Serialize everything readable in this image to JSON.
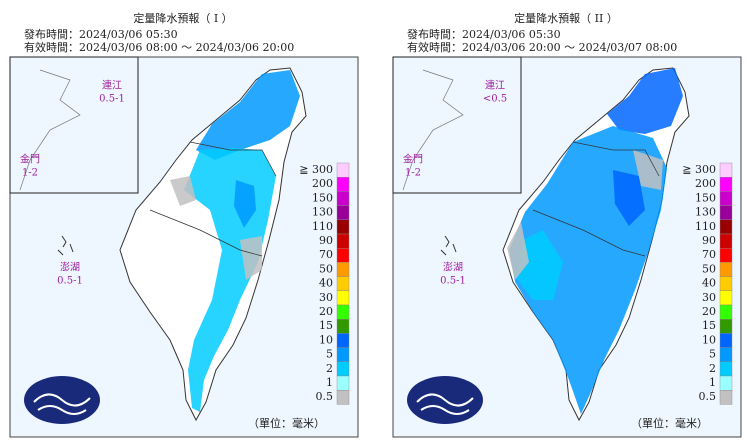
{
  "panels": [
    {
      "title": "定量降水預報（ I ）",
      "issued": "發布時間：2024/03/06 05:30",
      "valid": "有效時間：2024/03/06 08:00 ～ 2024/03/06 20:00",
      "islands": [
        {
          "name": "連江",
          "amount": "0.5-1"
        },
        {
          "name": "金門",
          "amount": "1-2"
        },
        {
          "name": "澎湖",
          "amount": "0.5-1"
        }
      ],
      "unit": "（單位：毫米）"
    },
    {
      "title": "定量降水預報（ II ）",
      "issued": "發布時間：2024/03/06 05:30",
      "valid": "有效時間：2024/03/06 20:00 ～ 2024/03/07 08:00",
      "islands": [
        {
          "name": "連江",
          "amount": "<0.5"
        },
        {
          "name": "金門",
          "amount": "1-2"
        },
        {
          "name": "澎湖",
          "amount": "0.5-1"
        }
      ],
      "unit": "（單位：毫米）"
    }
  ],
  "legend": {
    "labels": [
      "≧ 300",
      "200",
      "150",
      "130",
      "110",
      "90",
      "70",
      "50",
      "40",
      "30",
      "20",
      "15",
      "10",
      "5",
      "2",
      "1",
      "0.5"
    ],
    "colors": [
      "#ffccff",
      "#ff00ff",
      "#cc00cc",
      "#990099",
      "#990000",
      "#cc0000",
      "#ff0000",
      "#ff9900",
      "#ffcc00",
      "#ffff00",
      "#33ff00",
      "#339900",
      "#0066ff",
      "#0099ff",
      "#00ccff",
      "#99ffff",
      "#c1c1c1"
    ]
  }
}
